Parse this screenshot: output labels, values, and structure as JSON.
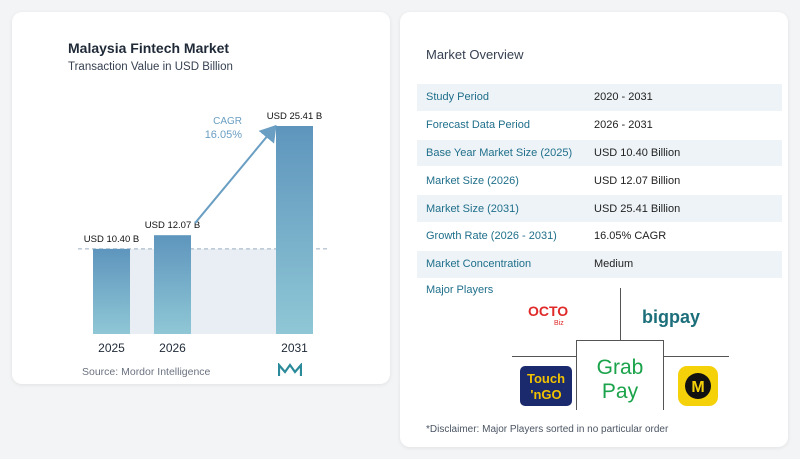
{
  "chart_data": {
    "type": "bar",
    "title": "Malaysia Fintech Market",
    "subtitle": "Transaction Value in USD Billion",
    "categories": [
      "2025",
      "2026",
      "2031"
    ],
    "values": [
      10.4,
      12.07,
      25.41
    ],
    "value_labels": [
      "USD 10.40 B",
      "USD 12.07 B",
      "USD 25.41 B"
    ],
    "ylim": [
      0,
      25.41
    ],
    "grid": false,
    "annotation": {
      "label": "CAGR",
      "value": "16.05%"
    },
    "colors": {
      "bar_top": "#5e95bd",
      "bar_bottom": "#8fc7d6",
      "band": "#e8eef4",
      "arrow": "#6a9ec2"
    }
  },
  "source": "Source:  Mordor Intelligence",
  "overview": {
    "title": "Market Overview",
    "rows": [
      {
        "key": "Study Period",
        "value": "2020 - 2031"
      },
      {
        "key": "Forecast Data Period",
        "value": "2026 - 2031"
      },
      {
        "key": "Base Year Market Size (2025)",
        "value": "USD 10.40 Billion"
      },
      {
        "key": "Market Size (2026)",
        "value": "USD 12.07 Billion"
      },
      {
        "key": "Market Size (2031)",
        "value": "USD 25.41 Billion"
      },
      {
        "key": "Growth Rate (2026 - 2031)",
        "value": "16.05% CAGR"
      },
      {
        "key": "Market Concentration",
        "value": "Medium"
      }
    ]
  },
  "players": {
    "title": "Major Players",
    "logos": [
      "OCTO Biz",
      "bigpay",
      "Touch 'n Go",
      "Grab Pay",
      "MAE"
    ]
  },
  "disclaimer": "*Disclaimer: Major Players sorted in no particular order",
  "colors": {
    "accent": "#1f6f8b",
    "row_shade": "#eef3f7"
  }
}
